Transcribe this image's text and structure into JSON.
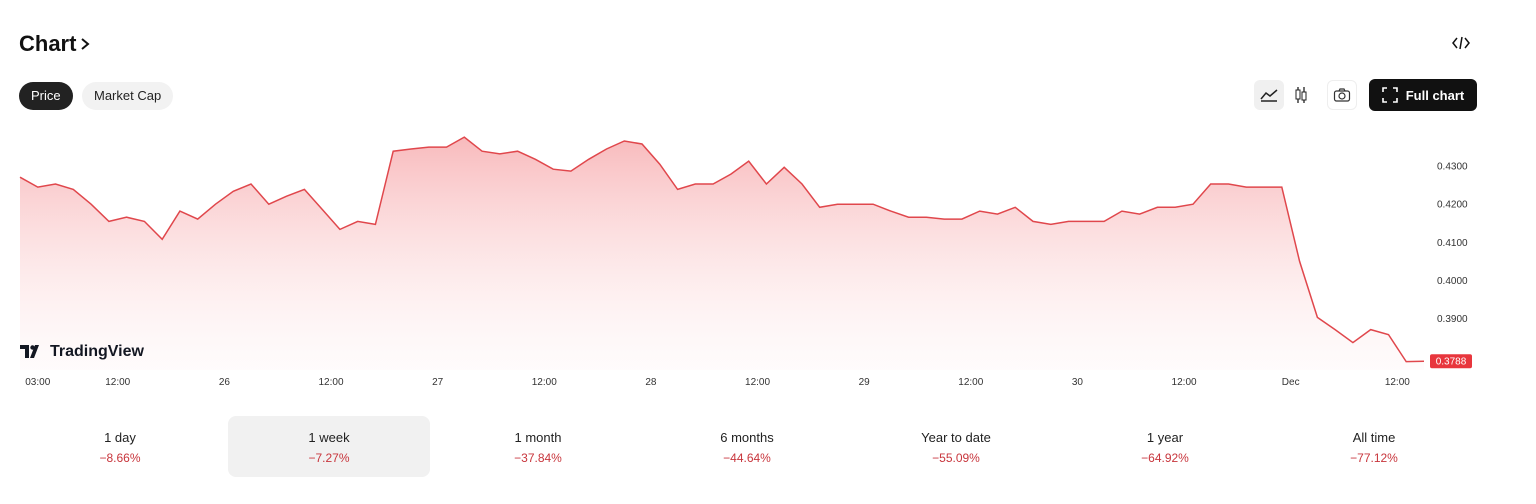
{
  "header": {
    "title": "Chart",
    "tabs": [
      "Price",
      "Market Cap"
    ],
    "full_chart": "Full chart"
  },
  "brand": "TradingView",
  "chart_data": {
    "type": "line",
    "x": [
      1,
      3,
      5,
      7,
      9,
      11,
      13,
      15,
      17,
      19,
      21,
      23,
      25,
      27,
      29,
      31,
      33,
      35,
      37,
      39,
      41,
      43,
      45,
      47,
      49,
      51,
      53,
      55,
      57,
      59,
      61,
      63,
      65,
      67,
      69,
      71,
      73,
      75,
      77,
      79,
      81,
      83,
      85,
      87,
      89,
      91,
      93,
      95,
      97,
      99,
      101,
      103,
      105,
      107,
      109,
      111,
      113,
      115,
      117,
      119,
      121,
      123,
      125,
      127,
      129,
      131,
      133,
      135,
      137,
      139,
      141,
      143,
      145,
      147,
      149,
      151,
      153,
      155,
      157,
      159
    ],
    "series": [
      {
        "color": "#e0474c",
        "values": [
          0.4271,
          0.4245,
          0.4253,
          0.4239,
          0.42,
          0.4155,
          0.4166,
          0.4155,
          0.4108,
          0.4182,
          0.4161,
          0.42,
          0.4234,
          0.4253,
          0.42,
          0.4221,
          0.4239,
          0.4187,
          0.4134,
          0.4155,
          0.4147,
          0.4339,
          0.4345,
          0.435,
          0.435,
          0.4376,
          0.4339,
          0.4332,
          0.4339,
          0.4318,
          0.4292,
          0.4287,
          0.4318,
          0.4345,
          0.4366,
          0.4358,
          0.4305,
          0.4239,
          0.4253,
          0.4253,
          0.4279,
          0.4313,
          0.4253,
          0.4297,
          0.4253,
          0.4192,
          0.42,
          0.42,
          0.42,
          0.4182,
          0.4166,
          0.4166,
          0.4161,
          0.4161,
          0.4182,
          0.4174,
          0.4192,
          0.4155,
          0.4147,
          0.4155,
          0.4155,
          0.4155,
          0.4182,
          0.4174,
          0.4192,
          0.4192,
          0.42,
          0.4253,
          0.4253,
          0.4245,
          0.4245,
          0.4245,
          0.405,
          0.3903,
          0.3871,
          0.3837,
          0.3871,
          0.3858,
          0.3787,
          0.3788
        ]
      }
    ],
    "xlim": [
      1,
      159
    ],
    "xticks": [
      {
        "value": 3,
        "label": "03:00"
      },
      {
        "value": 12,
        "label": "12:00"
      },
      {
        "value": 24,
        "label": "26"
      },
      {
        "value": 36,
        "label": "12:00"
      },
      {
        "value": 48,
        "label": "27"
      },
      {
        "value": 60,
        "label": "12:00"
      },
      {
        "value": 72,
        "label": "28"
      },
      {
        "value": 84,
        "label": "12:00"
      },
      {
        "value": 96,
        "label": "29"
      },
      {
        "value": 108,
        "label": "12:00"
      },
      {
        "value": 120,
        "label": "30"
      },
      {
        "value": 132,
        "label": "12:00"
      },
      {
        "value": 144,
        "label": "Dec"
      },
      {
        "value": 156,
        "label": "12:00"
      }
    ],
    "ylim": [
      0.3765,
      0.44
    ],
    "yticks": [
      {
        "value": 0.39,
        "label": "0.3900"
      },
      {
        "value": 0.4,
        "label": "0.4000"
      },
      {
        "value": 0.41,
        "label": "0.4100"
      },
      {
        "value": 0.42,
        "label": "0.4200"
      },
      {
        "value": 0.43,
        "label": "0.4300"
      }
    ],
    "grid": false,
    "current_price": {
      "value": 0.3788,
      "label": "0.3788",
      "color": "#e8363d"
    }
  },
  "periods": [
    {
      "label": "1 day",
      "change": "−8.66%"
    },
    {
      "label": "1 week",
      "change": "−7.27%"
    },
    {
      "label": "1 month",
      "change": "−37.84%"
    },
    {
      "label": "6 months",
      "change": "−44.64%"
    },
    {
      "label": "Year to date",
      "change": "−55.09%"
    },
    {
      "label": "1 year",
      "change": "−64.92%"
    },
    {
      "label": "All time",
      "change": "−77.12%"
    }
  ]
}
